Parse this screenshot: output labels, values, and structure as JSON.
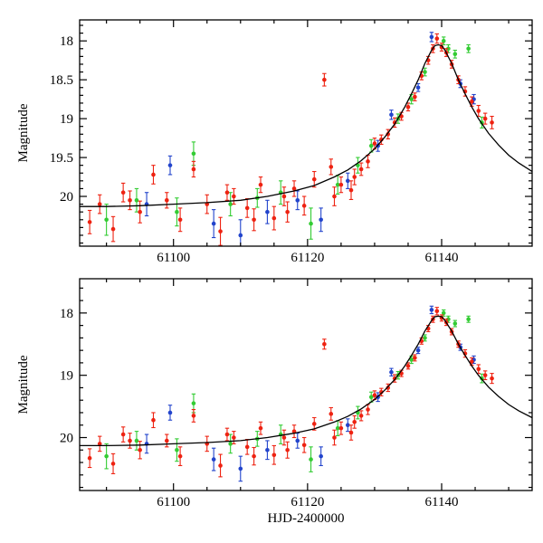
{
  "figure": {
    "description": "Two-panel microlensing light curve, magnitude versus HJD-2400000, three telescope datasets (red, green, blue) with error bars and black model curves"
  },
  "chart_data": {
    "type": "scatter",
    "x_label": "HJD-2400000",
    "y_label": "Magnitude",
    "x_range": [
      61086,
      61153.5
    ],
    "x_ticks": [
      61100,
      61120,
      61140
    ],
    "x_minor_step": 5,
    "grid": false,
    "legend": "none",
    "panels": [
      {
        "name": "top",
        "y_range": [
          17.73,
          20.64
        ],
        "y_ticks": [
          18,
          18.5,
          19,
          19.5,
          20
        ],
        "y_minor_step": 0.1,
        "show_x_label": false
      },
      {
        "name": "bottom",
        "y_range": [
          17.45,
          20.85
        ],
        "y_ticks": [
          18,
          19,
          20
        ],
        "y_minor_step": 0.2,
        "show_x_label": true
      }
    ],
    "series": [
      {
        "name": "red",
        "color": "#ee2211",
        "points": [
          [
            61087.5,
            20.33,
            0.15
          ],
          [
            61089,
            20.1,
            0.12
          ],
          [
            61091,
            20.42,
            0.16
          ],
          [
            61092.5,
            19.95,
            0.12
          ],
          [
            61093.5,
            20.05,
            0.12
          ],
          [
            61095,
            20.2,
            0.14
          ],
          [
            61097,
            19.72,
            0.12
          ],
          [
            61099,
            20.05,
            0.1
          ],
          [
            61101,
            20.3,
            0.15
          ],
          [
            61103,
            19.65,
            0.1
          ],
          [
            61105,
            20.1,
            0.12
          ],
          [
            61107,
            20.45,
            0.18
          ],
          [
            61108,
            19.95,
            0.1
          ],
          [
            61109,
            20.0,
            0.1
          ],
          [
            61111,
            20.15,
            0.12
          ],
          [
            61112,
            20.3,
            0.14
          ],
          [
            61113,
            19.85,
            0.1
          ],
          [
            61115,
            20.28,
            0.15
          ],
          [
            61116.5,
            20.0,
            0.12
          ],
          [
            61117,
            20.2,
            0.13
          ],
          [
            61118,
            19.9,
            0.1
          ],
          [
            61119.5,
            20.12,
            0.12
          ],
          [
            61121,
            19.78,
            0.1
          ],
          [
            61122.5,
            18.5,
            0.08
          ],
          [
            61123.5,
            19.62,
            0.1
          ],
          [
            61124,
            20.0,
            0.12
          ],
          [
            61125,
            19.85,
            0.1
          ],
          [
            61126.5,
            19.92,
            0.12
          ],
          [
            61127,
            19.75,
            0.1
          ],
          [
            61128,
            19.65,
            0.08
          ],
          [
            61129,
            19.55,
            0.08
          ],
          [
            61130,
            19.32,
            0.07
          ],
          [
            61131,
            19.27,
            0.06
          ],
          [
            61132,
            19.2,
            0.06
          ],
          [
            61133,
            19.05,
            0.06
          ],
          [
            61134,
            18.97,
            0.05
          ],
          [
            61135,
            18.85,
            0.05
          ],
          [
            61136,
            18.72,
            0.05
          ],
          [
            61137,
            18.45,
            0.05
          ],
          [
            61138,
            18.25,
            0.05
          ],
          [
            61138.7,
            18.1,
            0.05
          ],
          [
            61139.3,
            17.97,
            0.06
          ],
          [
            61140,
            18.08,
            0.05
          ],
          [
            61140.7,
            18.15,
            0.05
          ],
          [
            61141.5,
            18.3,
            0.05
          ],
          [
            61142.5,
            18.5,
            0.05
          ],
          [
            61143.5,
            18.65,
            0.06
          ],
          [
            61144.5,
            18.78,
            0.06
          ],
          [
            61145.5,
            18.9,
            0.07
          ],
          [
            61146.5,
            19.0,
            0.07
          ],
          [
            61147.5,
            19.05,
            0.08
          ]
        ]
      },
      {
        "name": "green",
        "color": "#33cc33",
        "points": [
          [
            61090,
            20.3,
            0.2
          ],
          [
            61094.5,
            20.05,
            0.15
          ],
          [
            61100.5,
            20.2,
            0.18
          ],
          [
            61103,
            19.45,
            0.15
          ],
          [
            61108.5,
            20.1,
            0.15
          ],
          [
            61112.5,
            20.02,
            0.12
          ],
          [
            61116,
            19.95,
            0.15
          ],
          [
            61120.5,
            20.35,
            0.2
          ],
          [
            61124.5,
            19.85,
            0.12
          ],
          [
            61127.5,
            19.6,
            0.1
          ],
          [
            61129.5,
            19.35,
            0.08
          ],
          [
            61133.5,
            19.0,
            0.06
          ],
          [
            61135.5,
            18.75,
            0.06
          ],
          [
            61137.5,
            18.4,
            0.05
          ],
          [
            61140.3,
            18.0,
            0.05
          ],
          [
            61141,
            18.1,
            0.05
          ],
          [
            61142,
            18.17,
            0.05
          ],
          [
            61144,
            18.1,
            0.05
          ],
          [
            61146,
            19.05,
            0.07
          ]
        ]
      },
      {
        "name": "blue",
        "color": "#2244cc",
        "points": [
          [
            61096,
            20.1,
            0.15
          ],
          [
            61099.5,
            19.6,
            0.12
          ],
          [
            61106,
            20.35,
            0.18
          ],
          [
            61110,
            20.5,
            0.2
          ],
          [
            61114,
            20.2,
            0.15
          ],
          [
            61118.5,
            20.05,
            0.12
          ],
          [
            61122,
            20.3,
            0.15
          ],
          [
            61126,
            19.8,
            0.1
          ],
          [
            61130.5,
            19.35,
            0.07
          ],
          [
            61132.5,
            18.95,
            0.06
          ],
          [
            61136.5,
            18.6,
            0.05
          ],
          [
            61138.5,
            17.95,
            0.06
          ],
          [
            61142.8,
            18.55,
            0.05
          ],
          [
            61144.8,
            18.75,
            0.06
          ]
        ]
      }
    ],
    "model_curve": {
      "color": "#000000",
      "points": [
        [
          61086,
          20.13
        ],
        [
          61090,
          20.13
        ],
        [
          61095,
          20.12
        ],
        [
          61100,
          20.1
        ],
        [
          61105,
          20.08
        ],
        [
          61110,
          20.05
        ],
        [
          61114,
          20.0
        ],
        [
          61118,
          19.93
        ],
        [
          61121,
          19.86
        ],
        [
          61124,
          19.75
        ],
        [
          61126,
          19.66
        ],
        [
          61128,
          19.54
        ],
        [
          61130,
          19.39
        ],
        [
          61131.5,
          19.24
        ],
        [
          61133,
          19.07
        ],
        [
          61134.5,
          18.85
        ],
        [
          61135.5,
          18.68
        ],
        [
          61136.5,
          18.5
        ],
        [
          61137.5,
          18.29
        ],
        [
          61138.5,
          18.12
        ],
        [
          61139,
          18.06
        ],
        [
          61139.5,
          18.05
        ],
        [
          61140,
          18.06
        ],
        [
          61140.5,
          18.12
        ],
        [
          61141.5,
          18.29
        ],
        [
          61142.5,
          18.5
        ],
        [
          61143.5,
          18.68
        ],
        [
          61144.5,
          18.85
        ],
        [
          61145.5,
          19.0
        ],
        [
          61147,
          19.19
        ],
        [
          61148.5,
          19.34
        ],
        [
          61150,
          19.47
        ],
        [
          61151.5,
          19.57
        ],
        [
          61153.5,
          19.68
        ]
      ]
    }
  }
}
